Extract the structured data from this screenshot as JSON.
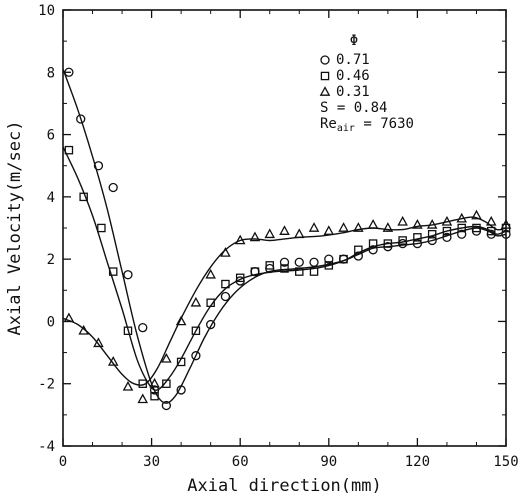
{
  "chart_data": {
    "type": "scatter",
    "xlabel": "Axial direction(mm)",
    "ylabel": "Axial Velocity(m/sec)",
    "xlim": [
      0,
      150
    ],
    "ylim": [
      -4,
      10
    ],
    "x_ticks": [
      0,
      30,
      60,
      90,
      120,
      150
    ],
    "x_tick_labels": [
      "0",
      "30",
      "60",
      "90",
      "120",
      "150"
    ],
    "y_ticks": [
      -4,
      -2,
      0,
      2,
      4,
      6,
      8,
      10
    ],
    "y_tick_labels": [
      "-4",
      "-2",
      "0",
      "2",
      "4",
      "6",
      "8",
      "10"
    ],
    "grid": false,
    "legend": {
      "title": "Φ",
      "position": "top-right",
      "entries": [
        {
          "marker": "circle",
          "label": "0.71"
        },
        {
          "marker": "square",
          "label": "0.46"
        },
        {
          "marker": "triangle",
          "label": "0.31"
        }
      ],
      "params": [
        "S = 0.84"
      ],
      "re_label": {
        "base": "Re",
        "sub": "air",
        "rest": " = 7630"
      }
    },
    "series": [
      {
        "name": "0.71",
        "marker": "circle",
        "points": [
          [
            2,
            8.0
          ],
          [
            6,
            6.5
          ],
          [
            12,
            5.0
          ],
          [
            17,
            4.3
          ],
          [
            22,
            1.5
          ],
          [
            27,
            -0.2
          ],
          [
            31,
            -2.2
          ],
          [
            35,
            -2.7
          ],
          [
            40,
            -2.2
          ],
          [
            45,
            -1.1
          ],
          [
            50,
            -0.1
          ],
          [
            55,
            0.8
          ],
          [
            60,
            1.3
          ],
          [
            65,
            1.6
          ],
          [
            70,
            1.7
          ],
          [
            75,
            1.9
          ],
          [
            80,
            1.9
          ],
          [
            85,
            1.9
          ],
          [
            90,
            2.0
          ],
          [
            95,
            2.0
          ],
          [
            100,
            2.1
          ],
          [
            105,
            2.3
          ],
          [
            110,
            2.4
          ],
          [
            115,
            2.5
          ],
          [
            120,
            2.5
          ],
          [
            125,
            2.6
          ],
          [
            130,
            2.7
          ],
          [
            135,
            2.8
          ],
          [
            140,
            2.9
          ],
          [
            145,
            2.8
          ],
          [
            150,
            2.8
          ]
        ],
        "curve": [
          [
            0,
            8.1
          ],
          [
            5,
            6.8
          ],
          [
            10,
            5.3
          ],
          [
            15,
            3.6
          ],
          [
            20,
            1.6
          ],
          [
            25,
            -0.4
          ],
          [
            30,
            -2.0
          ],
          [
            34,
            -2.6
          ],
          [
            38,
            -2.4
          ],
          [
            43,
            -1.5
          ],
          [
            48,
            -0.5
          ],
          [
            53,
            0.3
          ],
          [
            58,
            0.9
          ],
          [
            63,
            1.3
          ],
          [
            68,
            1.55
          ],
          [
            73,
            1.65
          ],
          [
            80,
            1.7
          ],
          [
            88,
            1.8
          ],
          [
            95,
            1.95
          ],
          [
            100,
            2.15
          ],
          [
            105,
            2.35
          ],
          [
            110,
            2.4
          ],
          [
            115,
            2.45
          ],
          [
            120,
            2.5
          ],
          [
            125,
            2.6
          ],
          [
            130,
            2.75
          ],
          [
            135,
            2.9
          ],
          [
            140,
            3.0
          ],
          [
            144,
            2.9
          ],
          [
            147,
            2.75
          ],
          [
            150,
            2.8
          ]
        ]
      },
      {
        "name": "0.46",
        "marker": "square",
        "points": [
          [
            2,
            5.5
          ],
          [
            7,
            4.0
          ],
          [
            13,
            3.0
          ],
          [
            17,
            1.6
          ],
          [
            22,
            -0.3
          ],
          [
            27,
            -2.0
          ],
          [
            31,
            -2.4
          ],
          [
            35,
            -2.0
          ],
          [
            40,
            -1.3
          ],
          [
            45,
            -0.3
          ],
          [
            50,
            0.6
          ],
          [
            55,
            1.2
          ],
          [
            60,
            1.4
          ],
          [
            65,
            1.6
          ],
          [
            70,
            1.8
          ],
          [
            75,
            1.7
          ],
          [
            80,
            1.6
          ],
          [
            85,
            1.6
          ],
          [
            90,
            1.8
          ],
          [
            95,
            2.0
          ],
          [
            100,
            2.3
          ],
          [
            105,
            2.5
          ],
          [
            110,
            2.5
          ],
          [
            115,
            2.6
          ],
          [
            120,
            2.7
          ],
          [
            125,
            2.8
          ],
          [
            130,
            2.9
          ],
          [
            135,
            3.0
          ],
          [
            140,
            3.0
          ],
          [
            145,
            2.9
          ],
          [
            150,
            3.0
          ]
        ],
        "curve": [
          [
            0,
            5.6
          ],
          [
            5,
            4.6
          ],
          [
            10,
            3.4
          ],
          [
            15,
            1.9
          ],
          [
            20,
            0.4
          ],
          [
            25,
            -1.2
          ],
          [
            29,
            -2.0
          ],
          [
            32,
            -2.2
          ],
          [
            36,
            -1.8
          ],
          [
            40,
            -1.2
          ],
          [
            45,
            -0.3
          ],
          [
            50,
            0.5
          ],
          [
            55,
            1.05
          ],
          [
            60,
            1.35
          ],
          [
            65,
            1.5
          ],
          [
            72,
            1.6
          ],
          [
            80,
            1.65
          ],
          [
            88,
            1.75
          ],
          [
            95,
            1.95
          ],
          [
            100,
            2.2
          ],
          [
            105,
            2.4
          ],
          [
            110,
            2.5
          ],
          [
            115,
            2.55
          ],
          [
            120,
            2.65
          ],
          [
            125,
            2.75
          ],
          [
            130,
            2.9
          ],
          [
            135,
            3.0
          ],
          [
            140,
            3.05
          ],
          [
            144,
            2.95
          ],
          [
            147,
            2.8
          ],
          [
            150,
            2.9
          ]
        ]
      },
      {
        "name": "0.31",
        "marker": "triangle",
        "points": [
          [
            2,
            0.1
          ],
          [
            7,
            -0.3
          ],
          [
            12,
            -0.7
          ],
          [
            17,
            -1.3
          ],
          [
            22,
            -2.1
          ],
          [
            27,
            -2.5
          ],
          [
            31,
            -2.0
          ],
          [
            35,
            -1.2
          ],
          [
            40,
            0.0
          ],
          [
            45,
            0.6
          ],
          [
            50,
            1.5
          ],
          [
            55,
            2.2
          ],
          [
            60,
            2.6
          ],
          [
            65,
            2.7
          ],
          [
            70,
            2.8
          ],
          [
            75,
            2.9
          ],
          [
            80,
            2.8
          ],
          [
            85,
            3.0
          ],
          [
            90,
            2.9
          ],
          [
            95,
            3.0
          ],
          [
            100,
            3.0
          ],
          [
            105,
            3.1
          ],
          [
            110,
            3.0
          ],
          [
            115,
            3.2
          ],
          [
            120,
            3.1
          ],
          [
            125,
            3.1
          ],
          [
            130,
            3.2
          ],
          [
            135,
            3.3
          ],
          [
            140,
            3.4
          ],
          [
            145,
            3.2
          ],
          [
            150,
            3.1
          ]
        ],
        "curve": [
          [
            0,
            0.1
          ],
          [
            5,
            -0.1
          ],
          [
            10,
            -0.5
          ],
          [
            15,
            -1.1
          ],
          [
            20,
            -1.7
          ],
          [
            24,
            -2.0
          ],
          [
            28,
            -2.0
          ],
          [
            32,
            -1.5
          ],
          [
            36,
            -0.7
          ],
          [
            40,
            0.1
          ],
          [
            45,
            1.0
          ],
          [
            50,
            1.75
          ],
          [
            55,
            2.3
          ],
          [
            60,
            2.6
          ],
          [
            65,
            2.65
          ],
          [
            70,
            2.6
          ],
          [
            75,
            2.65
          ],
          [
            80,
            2.7
          ],
          [
            88,
            2.75
          ],
          [
            95,
            2.85
          ],
          [
            100,
            2.95
          ],
          [
            105,
            3.0
          ],
          [
            110,
            2.95
          ],
          [
            115,
            2.95
          ],
          [
            120,
            3.05
          ],
          [
            125,
            3.1
          ],
          [
            130,
            3.2
          ],
          [
            135,
            3.3
          ],
          [
            139,
            3.35
          ],
          [
            143,
            3.2
          ],
          [
            147,
            2.95
          ],
          [
            150,
            3.0
          ]
        ]
      }
    ]
  }
}
